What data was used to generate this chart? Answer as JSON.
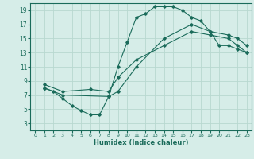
{
  "title": "",
  "xlabel": "Humidex (Indice chaleur)",
  "bg_color": "#d6ede8",
  "grid_color": "#b8d8d0",
  "line_color": "#1a6b5a",
  "xlim": [
    -0.5,
    23.5
  ],
  "ylim": [
    2,
    20
  ],
  "yticks": [
    3,
    5,
    7,
    9,
    11,
    13,
    15,
    17,
    19
  ],
  "xticks": [
    0,
    1,
    2,
    3,
    4,
    5,
    6,
    7,
    8,
    9,
    10,
    11,
    12,
    13,
    14,
    15,
    16,
    17,
    18,
    19,
    20,
    21,
    22,
    23
  ],
  "curve1_x": [
    1,
    2,
    3,
    4,
    5,
    6,
    7,
    8,
    9,
    10,
    11,
    12,
    13,
    14,
    15,
    16,
    17,
    18,
    19,
    20,
    21,
    22,
    23
  ],
  "curve1_y": [
    8,
    7.5,
    6.5,
    5.5,
    4.8,
    4.2,
    4.2,
    6.8,
    11,
    14.5,
    18,
    18.5,
    19.5,
    19.5,
    19.5,
    19,
    18,
    17.5,
    16,
    14,
    14,
    13.5,
    13
  ],
  "curve2_x": [
    1,
    3,
    8,
    9,
    11,
    14,
    17,
    19,
    21,
    22,
    23
  ],
  "curve2_y": [
    8,
    7,
    6.8,
    7.5,
    11,
    15,
    17,
    16,
    15.5,
    15,
    14
  ],
  "curve3_x": [
    1,
    3,
    6,
    8,
    9,
    11,
    14,
    17,
    19,
    21,
    22,
    23
  ],
  "curve3_y": [
    8.5,
    7.5,
    7.8,
    7.5,
    9.5,
    12,
    14,
    16,
    15.5,
    15,
    14,
    13
  ]
}
